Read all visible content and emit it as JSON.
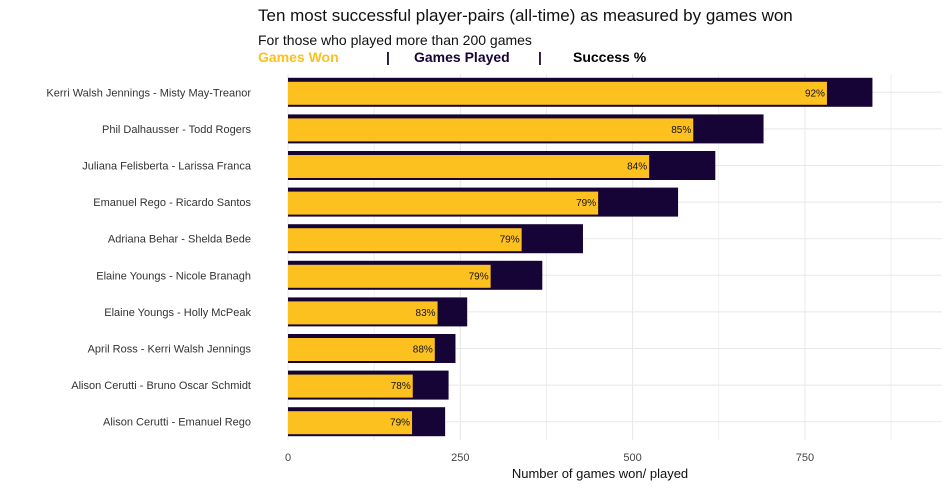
{
  "chart_data": {
    "type": "bar",
    "orientation": "horizontal",
    "title": "Ten most successful player-pairs (all-time) as measured by games won",
    "subtitle": "For those who played more than 200 games",
    "legend": {
      "won_label": "Games Won",
      "separator": "|",
      "played_label": "Games Played",
      "success_label": "Success %"
    },
    "xlabel": "Number of games won/ played",
    "ylabel": "",
    "xlim": [
      0,
      950
    ],
    "xticks": [
      0,
      250,
      500,
      750
    ],
    "categories": [
      "Kerri Walsh Jennings - Misty May-Treanor",
      "Phil Dalhausser - Todd Rogers",
      "Juliana Felisberta - Larissa Franca",
      "Emanuel Rego - Ricardo Santos",
      "Adriana Behar - Shelda Bede",
      "Elaine Youngs - Nicole Branagh",
      "Elaine Youngs - Holly McPeak",
      "April Ross - Kerri Walsh Jennings",
      "Alison Cerutti - Bruno Oscar Schmidt",
      "Alison Cerutti - Emanuel Rego"
    ],
    "series": [
      {
        "name": "Games Played",
        "values": [
          848,
          690,
          620,
          566,
          428,
          369,
          260,
          243,
          233,
          228
        ]
      },
      {
        "name": "Games Won",
        "values": [
          782,
          588,
          524,
          450,
          339,
          294,
          217,
          213,
          181,
          180
        ]
      }
    ],
    "success_labels": [
      "92%",
      "85%",
      "84%",
      "79%",
      "79%",
      "79%",
      "83%",
      "88%",
      "78%",
      "79%"
    ],
    "colors": {
      "won": "#FCC01F",
      "played": "#170437",
      "success": "#000000",
      "grid": "#e8e8e8"
    },
    "grid": true
  }
}
